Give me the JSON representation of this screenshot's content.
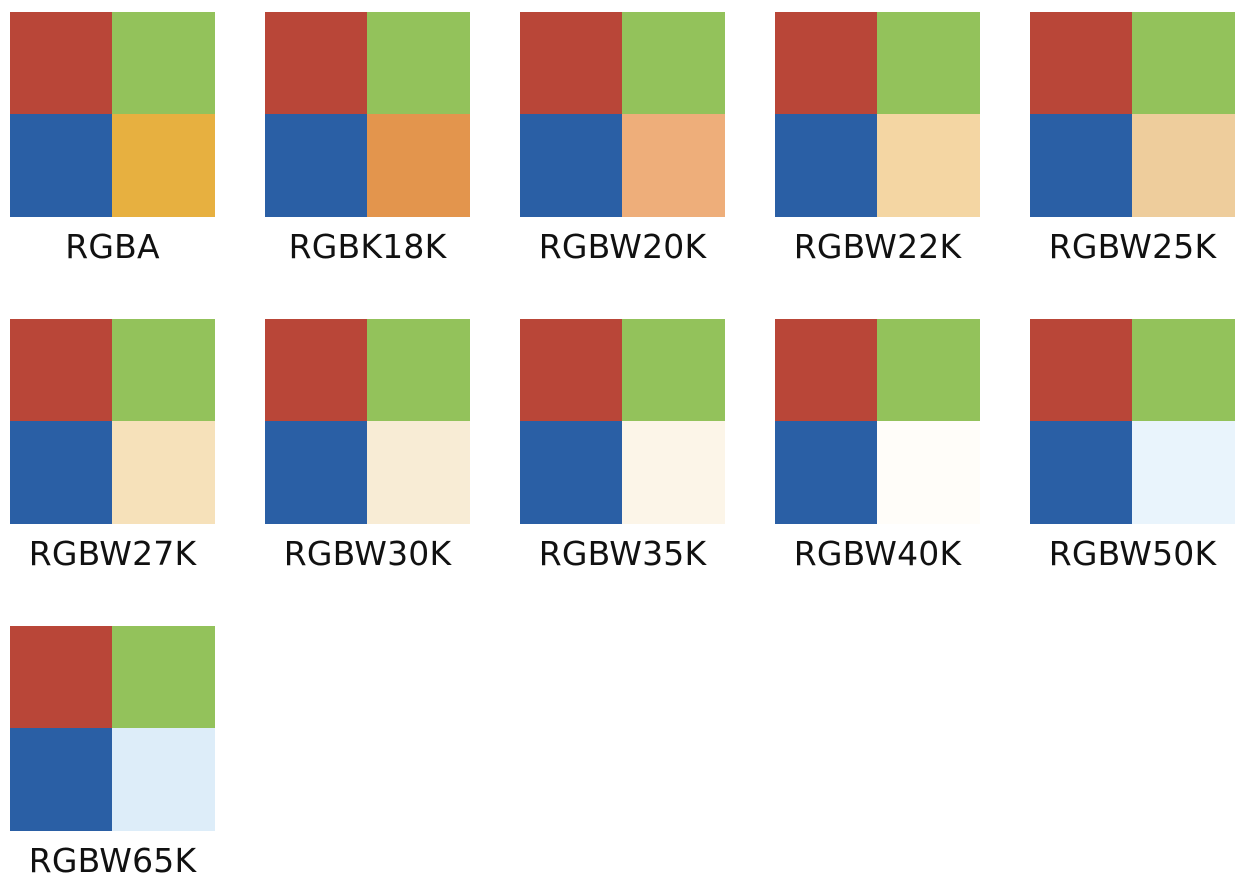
{
  "colors": {
    "red": "#b94638",
    "green": "#93c25b",
    "blue": "#2a5fa5"
  },
  "swatches": [
    {
      "label": "RGBA",
      "fourth": "#e7b040"
    },
    {
      "label": "RGBK18K",
      "fourth": "#e3954d"
    },
    {
      "label": "RGBW20K",
      "fourth": "#eeae7a"
    },
    {
      "label": "RGBW22K",
      "fourth": "#f4d6a3"
    },
    {
      "label": "RGBW25K",
      "fourth": "#eecd9c"
    },
    {
      "label": "RGBW27K",
      "fourth": "#f6e1ba"
    },
    {
      "label": "RGBW30K",
      "fourth": "#f8ecd5"
    },
    {
      "label": "RGBW35K",
      "fourth": "#fcf5e8"
    },
    {
      "label": "RGBW40K",
      "fourth": "#fffdf9"
    },
    {
      "label": "RGBW50K",
      "fourth": "#e9f4fc"
    },
    {
      "label": "RGBW65K",
      "fourth": "#ddedf9"
    }
  ]
}
